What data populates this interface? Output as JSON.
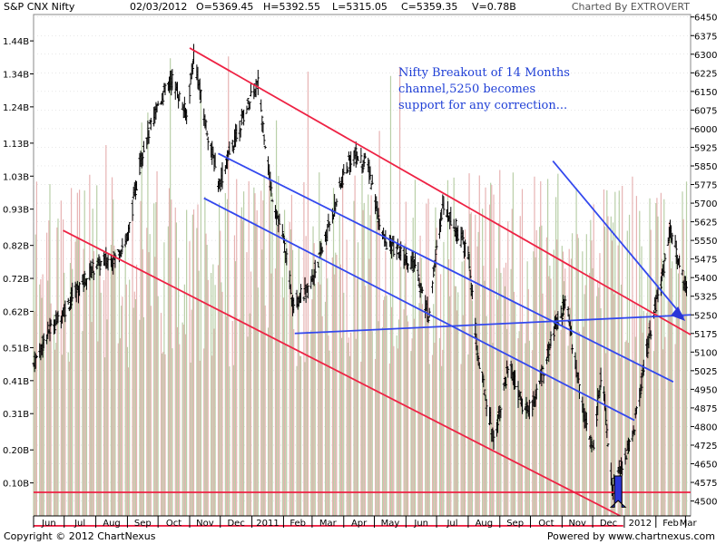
{
  "header": {
    "title": "S&P CNX Nifty",
    "date": "02/03/2012",
    "open": "O=5369.45",
    "high": "H=5392.55",
    "low": "L=5315.05",
    "close": "C=5359.35",
    "volume": "V=0.78B",
    "charted_by": "Charted By EXTROVERT"
  },
  "footer": {
    "copyright": "Copyright © 2012 ChartNexus",
    "powered": "Powered by www.chartnexus.com"
  },
  "colors": {
    "up": "#000000",
    "down": "#000000",
    "volume_a": "#e7b3b3",
    "volume_b": "#b9cfa8",
    "channel_red": "#ee2244",
    "channel_blue": "#3348ee",
    "arrow_blue": "#2a36d8",
    "grid": "#cfcfcf"
  },
  "chart_data": {
    "type": "candlestick",
    "price_axis": {
      "range": [
        4440,
        6460
      ],
      "ticks": [
        "6450",
        "6375",
        "6300",
        "6225",
        "6150",
        "6075",
        "6000",
        "5925",
        "5850",
        "5775",
        "5700",
        "5625",
        "5550",
        "5475",
        "5400",
        "5325",
        "5250",
        "5175",
        "5100",
        "5025",
        "4950",
        "4875",
        "4800",
        "4725",
        "4650",
        "4575",
        "4500"
      ]
    },
    "volume_axis": {
      "range": [
        0,
        1.52
      ],
      "ticks": [
        "1.44B",
        "1.34B",
        "1.24B",
        "1.13B",
        "1.03B",
        "0.93B",
        "0.82B",
        "0.72B",
        "0.62B",
        "0.51B",
        "0.41B",
        "0.31B",
        "0.20B",
        "0.10B"
      ]
    },
    "x_axis": {
      "start": "2010-06-01",
      "end": "2012-03-06",
      "months": [
        "Jun",
        "Jul",
        "Aug",
        "Sep",
        "Oct",
        "Nov",
        "Dec",
        "2011",
        "Feb",
        "Mar",
        "Apr",
        "May",
        "Jun",
        "Jul",
        "Aug",
        "Sep",
        "Oct",
        "Nov",
        "Dec",
        "2012",
        "Feb",
        "Mar"
      ]
    },
    "price_path": [
      [
        "2010-06-01",
        5050
      ],
      [
        "2010-06-15",
        5180
      ],
      [
        "2010-07-01",
        5270
      ],
      [
        "2010-07-20",
        5390
      ],
      [
        "2010-08-01",
        5450
      ],
      [
        "2010-08-20",
        5480
      ],
      [
        "2010-09-01",
        5560
      ],
      [
        "2010-09-15",
        5900
      ],
      [
        "2010-10-01",
        6100
      ],
      [
        "2010-10-15",
        6200
      ],
      [
        "2010-10-29",
        6050
      ],
      [
        "2010-11-05",
        6300
      ],
      [
        "2010-11-15",
        6050
      ],
      [
        "2010-11-30",
        5770
      ],
      [
        "2010-12-10",
        5900
      ],
      [
        "2010-12-31",
        6130
      ],
      [
        "2011-01-07",
        6180
      ],
      [
        "2011-01-20",
        5750
      ],
      [
        "2011-02-01",
        5550
      ],
      [
        "2011-02-10",
        5300
      ],
      [
        "2011-02-25",
        5350
      ],
      [
        "2011-03-10",
        5500
      ],
      [
        "2011-03-31",
        5800
      ],
      [
        "2011-04-10",
        5900
      ],
      [
        "2011-04-25",
        5850
      ],
      [
        "2011-05-10",
        5550
      ],
      [
        "2011-05-25",
        5500
      ],
      [
        "2011-06-10",
        5450
      ],
      [
        "2011-06-23",
        5250
      ],
      [
        "2011-07-07",
        5700
      ],
      [
        "2011-07-20",
        5600
      ],
      [
        "2011-08-01",
        5500
      ],
      [
        "2011-08-10",
        5100
      ],
      [
        "2011-08-26",
        4750
      ],
      [
        "2011-09-10",
        5050
      ],
      [
        "2011-09-25",
        4860
      ],
      [
        "2011-10-05",
        4900
      ],
      [
        "2011-10-25",
        5200
      ],
      [
        "2011-11-05",
        5300
      ],
      [
        "2011-11-20",
        4900
      ],
      [
        "2011-12-01",
        4700
      ],
      [
        "2011-12-10",
        5050
      ],
      [
        "2011-12-20",
        4550
      ],
      [
        "2011-12-30",
        4640
      ],
      [
        "2012-01-10",
        4780
      ],
      [
        "2012-01-25",
        5150
      ],
      [
        "2012-02-07",
        5400
      ],
      [
        "2012-02-15",
        5600
      ],
      [
        "2012-02-21",
        5500
      ],
      [
        "2012-03-02",
        5359
      ]
    ],
    "volume_range_per_bar": [
      0.45,
      1.05
    ],
    "trend_lines": [
      {
        "color": "red",
        "from": [
          "2010-11-01",
          6325
        ],
        "to": [
          "2012-03-06",
          5170
        ]
      },
      {
        "color": "red",
        "from": [
          "2010-06-30",
          5590
        ],
        "to": [
          "2011-12-28",
          4440
        ]
      },
      {
        "color": "red",
        "from": [
          "2010-06-01",
          4535
        ],
        "to": [
          "2012-03-06",
          4535
        ]
      },
      {
        "color": "red",
        "from": [
          "2010-06-01",
          4400
        ],
        "to": [
          "2011-12-31",
          4400
        ]
      },
      {
        "color": "blue",
        "from": [
          "2010-11-29",
          5900
        ],
        "to": [
          "2012-02-18",
          4980
        ]
      },
      {
        "color": "blue",
        "from": [
          "2010-11-15",
          5720
        ],
        "to": [
          "2012-01-11",
          4825
        ]
      },
      {
        "color": "blue",
        "from": [
          "2011-02-12",
          5175
        ],
        "to": [
          "2012-03-06",
          5250
        ]
      },
      {
        "color": "blue",
        "from": [
          "2011-10-23",
          5870
        ],
        "to": [
          "2012-02-28",
          5240
        ]
      }
    ],
    "annotation": "Nifty Breakout of 14 Months\nchannel,5250 becomes\nsupport for any correction...",
    "annotation_lines": [
      "Nifty Breakout of 14 Months",
      "channel,5250 becomes",
      "support for any correction..."
    ]
  }
}
